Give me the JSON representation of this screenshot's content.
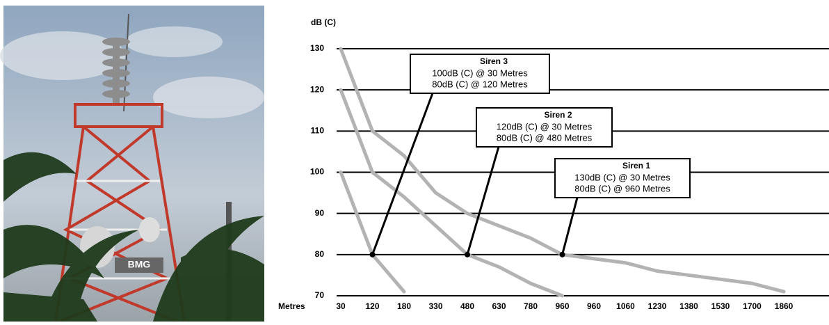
{
  "photo": {
    "label": "BMG"
  },
  "chart_data": {
    "type": "line",
    "y_label": "dB (C)",
    "x_label": "Metres",
    "categories": [
      "30",
      "120",
      "180",
      "330",
      "480",
      "630",
      "780",
      "960",
      "960",
      "1060",
      "1230",
      "1380",
      "1530",
      "1700",
      "1860"
    ],
    "ylim": [
      70,
      130
    ],
    "yticks": [
      70,
      80,
      90,
      100,
      110,
      120,
      130
    ],
    "grid": true,
    "series": [
      {
        "name": "Siren 1",
        "color": "#b3b3b3",
        "annotation": [
          "130dB (C) @ 30 Metres",
          "80dB (C) @  960 Metres"
        ],
        "values": [
          130,
          110,
          104,
          95,
          90,
          87,
          84,
          80,
          79,
          78,
          76,
          75,
          74,
          73,
          71
        ]
      },
      {
        "name": "Siren 2",
        "color": "#b3b3b3",
        "annotation": [
          "120dB (C) @ 30 Metres",
          "80dB (C) @  480 Metres"
        ],
        "values": [
          120,
          100,
          94,
          87,
          80,
          77,
          73,
          70,
          null,
          null,
          null,
          null,
          null,
          null,
          null
        ]
      },
      {
        "name": "Siren 3",
        "color": "#b3b3b3",
        "annotation": [
          "100dB (C) @ 30 Metres",
          "80dB (C) @  120 Metres"
        ],
        "values": [
          100,
          80,
          71,
          null,
          null,
          null,
          null,
          null,
          null,
          null,
          null,
          null,
          null,
          null,
          null
        ]
      }
    ]
  }
}
